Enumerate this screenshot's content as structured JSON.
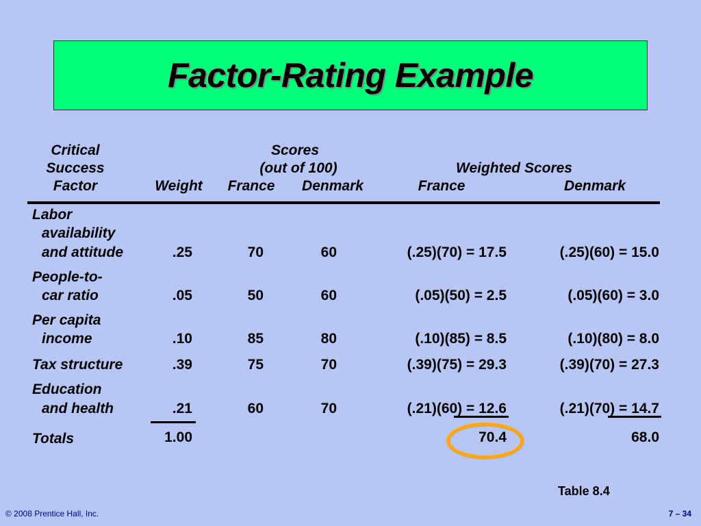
{
  "title": "Factor-Rating Example",
  "headers": {
    "factor_line1": "Critical",
    "factor_line2": "Success",
    "factor_line3": "Factor",
    "weight": "Weight",
    "scores_line1": "Scores",
    "scores_line2": "(out of 100)",
    "scores_france": "France",
    "scores_denmark": "Denmark",
    "weighted": "Weighted Scores",
    "weighted_france": "France",
    "weighted_denmark": "Denmark"
  },
  "rows": [
    {
      "factor": [
        "Labor",
        "availability",
        "and attitude"
      ],
      "weight": ".25",
      "france": "70",
      "denmark": "60",
      "w_france": "(.25)(70) = 17.5",
      "w_denmark": "(.25)(60) = 15.0"
    },
    {
      "factor": [
        "People-to-",
        "car ratio"
      ],
      "weight": ".05",
      "france": "50",
      "denmark": "60",
      "w_france": "(.05)(50) = 2.5",
      "w_denmark": "(.05)(60) = 3.0"
    },
    {
      "factor": [
        "Per capita",
        "income"
      ],
      "weight": ".10",
      "france": "85",
      "denmark": "80",
      "w_france": "(.10)(85) = 8.5",
      "w_denmark": "(.10)(80) = 8.0"
    },
    {
      "factor": [
        "Tax structure"
      ],
      "weight": ".39",
      "france": "75",
      "denmark": "70",
      "w_france": "(.39)(75) = 29.3",
      "w_denmark": "(.39)(70) = 27.3"
    },
    {
      "factor": [
        "Education",
        "and health"
      ],
      "weight": ".21",
      "france": "60",
      "denmark": "70",
      "w_france": "(.21)(60) = 12.6",
      "w_denmark": "(.21)(70) = 14.7"
    }
  ],
  "totals": {
    "label": "Totals",
    "weight": "1.00",
    "w_france": "70.4",
    "w_denmark": "68.0"
  },
  "caption": "Table 8.4",
  "footer": {
    "copyright": "© 2008 Prentice Hall, Inc.",
    "page": "7 – 34"
  },
  "colors": {
    "background": "#b8c6f5",
    "title_box": "#00ff7b",
    "highlight": "#f5a623",
    "footer": "#000080"
  }
}
